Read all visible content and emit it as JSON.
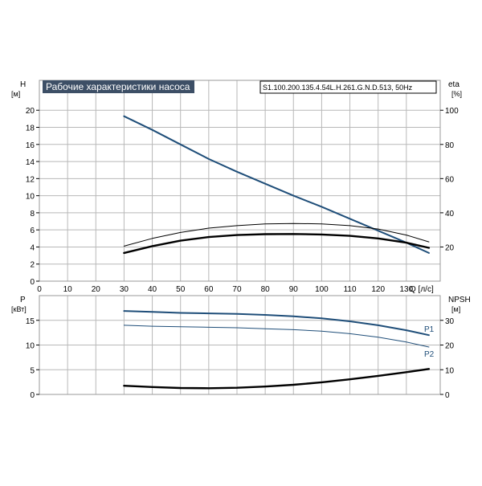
{
  "colors": {
    "grid": "#b8b8b8",
    "frame": "#9a9a9a",
    "title_bg": "#3d4f66",
    "title_fg": "#ffffff",
    "blue": "#1f4e79",
    "black": "#000000"
  },
  "chart_data": [
    {
      "type": "line",
      "title": "Рабочие характеристики насоса",
      "model_label": "S1.100.200.135.4.54L.H.261.G.N.D.513, 50Hz",
      "xlabel": "Q [л/с]",
      "ylabel": "H",
      "ylabel_unit": "[м]",
      "y2label": "eta",
      "y2label_unit": "[%]",
      "xlim": [
        0,
        142
      ],
      "ylim": [
        0,
        23.5
      ],
      "y2lim": [
        0,
        117.5
      ],
      "xticks": [
        0,
        10,
        20,
        30,
        40,
        50,
        60,
        70,
        80,
        90,
        100,
        110,
        120,
        130
      ],
      "yticks": [
        0,
        2,
        4,
        6,
        8,
        10,
        12,
        14,
        16,
        18,
        20
      ],
      "y2ticks": [
        20,
        40,
        60,
        80,
        100
      ],
      "grid": true,
      "series": [
        {
          "axis": "left",
          "color": "#1f4e79",
          "width": 2,
          "x": [
            30,
            40,
            50,
            60,
            70,
            80,
            90,
            100,
            110,
            120,
            130,
            138
          ],
          "values": [
            19.3,
            17.7,
            16.0,
            14.3,
            12.8,
            11.4,
            10.0,
            8.7,
            7.3,
            5.9,
            4.5,
            3.3
          ]
        },
        {
          "axis": "left",
          "color": "#000000",
          "width": 1,
          "x": [
            30,
            40,
            50,
            60,
            70,
            80,
            90,
            100,
            110,
            120,
            130,
            138
          ],
          "values": [
            4.1,
            5.0,
            5.7,
            6.2,
            6.5,
            6.7,
            6.75,
            6.7,
            6.5,
            6.1,
            5.4,
            4.6
          ]
        },
        {
          "axis": "right",
          "color": "#000000",
          "width": 2.4,
          "x": [
            30,
            40,
            50,
            60,
            70,
            80,
            90,
            100,
            110,
            120,
            130,
            138
          ],
          "values": [
            16.5,
            20.5,
            23.7,
            25.8,
            27.0,
            27.5,
            27.6,
            27.3,
            26.5,
            25.0,
            22.5,
            19.5
          ]
        }
      ]
    },
    {
      "type": "line",
      "ylabel": "P",
      "ylabel_unit": "[кВт]",
      "y2label": "NPSH",
      "y2label_unit": "[м]",
      "xlim": [
        0,
        142
      ],
      "ylim": [
        0,
        20
      ],
      "y2lim": [
        0,
        40
      ],
      "xticks": [
        0,
        10,
        20,
        30,
        40,
        50,
        60,
        70,
        80,
        90,
        100,
        110,
        120,
        130
      ],
      "yticks": [
        0,
        5,
        10,
        15
      ],
      "y2ticks": [
        0,
        10,
        20,
        30
      ],
      "grid": true,
      "series": [
        {
          "name": "P1",
          "axis": "left",
          "color": "#1f4e79",
          "width": 2,
          "x": [
            30,
            40,
            50,
            60,
            70,
            80,
            90,
            100,
            110,
            120,
            130,
            138
          ],
          "values": [
            16.9,
            16.7,
            16.5,
            16.4,
            16.3,
            16.1,
            15.8,
            15.4,
            14.8,
            14.0,
            13.0,
            12.0
          ]
        },
        {
          "name": "P2",
          "axis": "left",
          "color": "#1f4e79",
          "width": 1,
          "x": [
            30,
            40,
            50,
            60,
            70,
            80,
            90,
            100,
            110,
            120,
            130,
            138
          ],
          "values": [
            14.0,
            13.8,
            13.7,
            13.6,
            13.5,
            13.3,
            13.1,
            12.8,
            12.3,
            11.6,
            10.6,
            9.6
          ]
        },
        {
          "name": "NPSH",
          "axis": "right",
          "color": "#000000",
          "width": 2.4,
          "x": [
            30,
            40,
            50,
            60,
            70,
            80,
            90,
            100,
            110,
            120,
            130,
            138
          ],
          "values": [
            3.5,
            3.0,
            2.6,
            2.5,
            2.7,
            3.2,
            3.9,
            4.9,
            6.1,
            7.5,
            9.0,
            10.3
          ]
        }
      ],
      "series_labels": [
        "P1",
        "P2"
      ]
    }
  ]
}
